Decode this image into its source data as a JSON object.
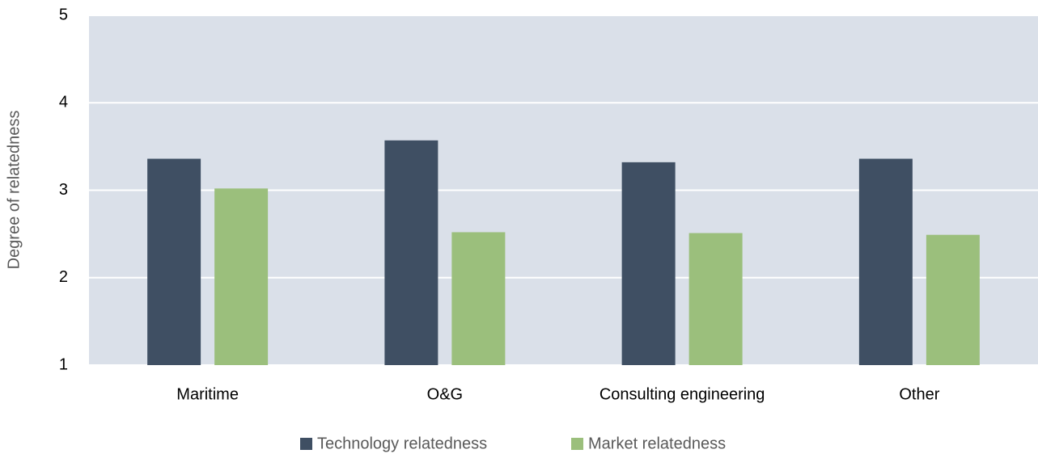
{
  "chart_data": {
    "type": "bar",
    "y_label": "Degree of relatedness",
    "categories": [
      "Maritime",
      "O&G",
      "Consulting engineering",
      "Other"
    ],
    "series": [
      {
        "name": "Technology relatedness",
        "color": "#3f4f63",
        "values": [
          3.36,
          3.57,
          3.32,
          3.36
        ]
      },
      {
        "name": "Market relatedness",
        "color": "#9bbf7c",
        "values": [
          3.02,
          2.52,
          2.51,
          2.49
        ]
      }
    ],
    "ylim": [
      1,
      5
    ],
    "yticks": [
      1,
      2,
      3,
      4,
      5
    ],
    "grid": true,
    "legend": "bottom"
  }
}
